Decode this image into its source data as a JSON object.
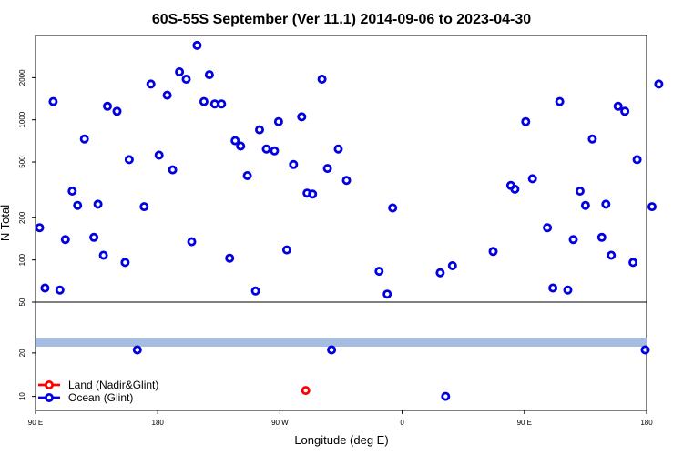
{
  "chart_data": {
    "type": "scatter",
    "title": "60S-55S September (Ver 11.1)   2014-09-06 to 2023-04-30",
    "xlabel": "Longitude (deg E)",
    "ylabel": "N Total",
    "x_ticks": [
      {
        "label": "90 E"
      },
      {
        "label": "180"
      },
      {
        "label": "90 W"
      },
      {
        "label": "0"
      },
      {
        "label": "90 E"
      },
      {
        "label": "180"
      }
    ],
    "upper_panel": {
      "yscale": "log",
      "ylim": [
        50,
        4000
      ],
      "y_ticks": [
        "50",
        "100",
        "200",
        "500",
        "1000",
        "2000"
      ]
    },
    "lower_panel": {
      "yscale": "log",
      "ylim": [
        8,
        45
      ],
      "y_ticks": [
        "10",
        "20"
      ]
    },
    "x_unwrapped_range": [
      90,
      540
    ],
    "legend": {
      "placement": "bottom-left",
      "entries": [
        {
          "label": "Land (Nadir&Glint)",
          "color": "#ff0000"
        },
        {
          "label": "Ocean (Glint)",
          "color": "#0000e0"
        }
      ]
    },
    "band_color": "#a5bde0",
    "series": [
      {
        "name": "Ocean (Glint)",
        "color": "#0000e0",
        "points": [
          [
            93,
            170
          ],
          [
            97,
            63
          ],
          [
            103,
            1350
          ],
          [
            108,
            61
          ],
          [
            112,
            140
          ],
          [
            117,
            310
          ],
          [
            121,
            245
          ],
          [
            126,
            730
          ],
          [
            133,
            145
          ],
          [
            136,
            250
          ],
          [
            140,
            108
          ],
          [
            143,
            1250
          ],
          [
            150,
            1150
          ],
          [
            156,
            96
          ],
          [
            159,
            520
          ],
          [
            165,
            21
          ],
          [
            170,
            240
          ],
          [
            175,
            1800
          ],
          [
            181,
            560
          ],
          [
            187,
            1500
          ],
          [
            191,
            440
          ],
          [
            196,
            2200
          ],
          [
            201,
            1950
          ],
          [
            205,
            135
          ],
          [
            209,
            3400
          ],
          [
            214,
            1350
          ],
          [
            218,
            2100
          ],
          [
            222,
            1300
          ],
          [
            227,
            1300
          ],
          [
            233,
            103
          ],
          [
            237,
            710
          ],
          [
            241,
            650
          ],
          [
            246,
            400
          ],
          [
            252,
            60
          ],
          [
            255,
            850
          ],
          [
            260,
            620
          ],
          [
            266,
            600
          ],
          [
            269,
            970
          ],
          [
            275,
            118
          ],
          [
            280,
            480
          ],
          [
            286,
            1050
          ],
          [
            290,
            300
          ],
          [
            294,
            295
          ],
          [
            301,
            1950
          ],
          [
            305,
            450
          ],
          [
            308,
            21
          ],
          [
            313,
            620
          ],
          [
            319,
            370
          ],
          [
            343,
            83
          ],
          [
            349,
            57
          ],
          [
            353,
            235
          ],
          [
            388,
            81
          ],
          [
            392,
            10
          ],
          [
            397,
            91
          ],
          [
            427,
            115
          ],
          [
            440,
            340
          ],
          [
            443,
            320
          ],
          [
            451,
            970
          ],
          [
            456,
            380
          ],
          [
            467,
            170
          ],
          [
            471,
            63
          ],
          [
            476,
            1350
          ],
          [
            482,
            61
          ],
          [
            486,
            140
          ],
          [
            491,
            310
          ],
          [
            495,
            245
          ],
          [
            500,
            730
          ],
          [
            507,
            145
          ],
          [
            510,
            250
          ],
          [
            514,
            108
          ],
          [
            519,
            1250
          ],
          [
            524,
            1150
          ],
          [
            530,
            96
          ],
          [
            533,
            520
          ],
          [
            539,
            21
          ],
          [
            544,
            240
          ],
          [
            549,
            1800
          ]
        ]
      },
      {
        "name": "Land (Nadir&Glint)",
        "color": "#ff0000",
        "points": [
          [
            289,
            11
          ]
        ]
      }
    ]
  }
}
